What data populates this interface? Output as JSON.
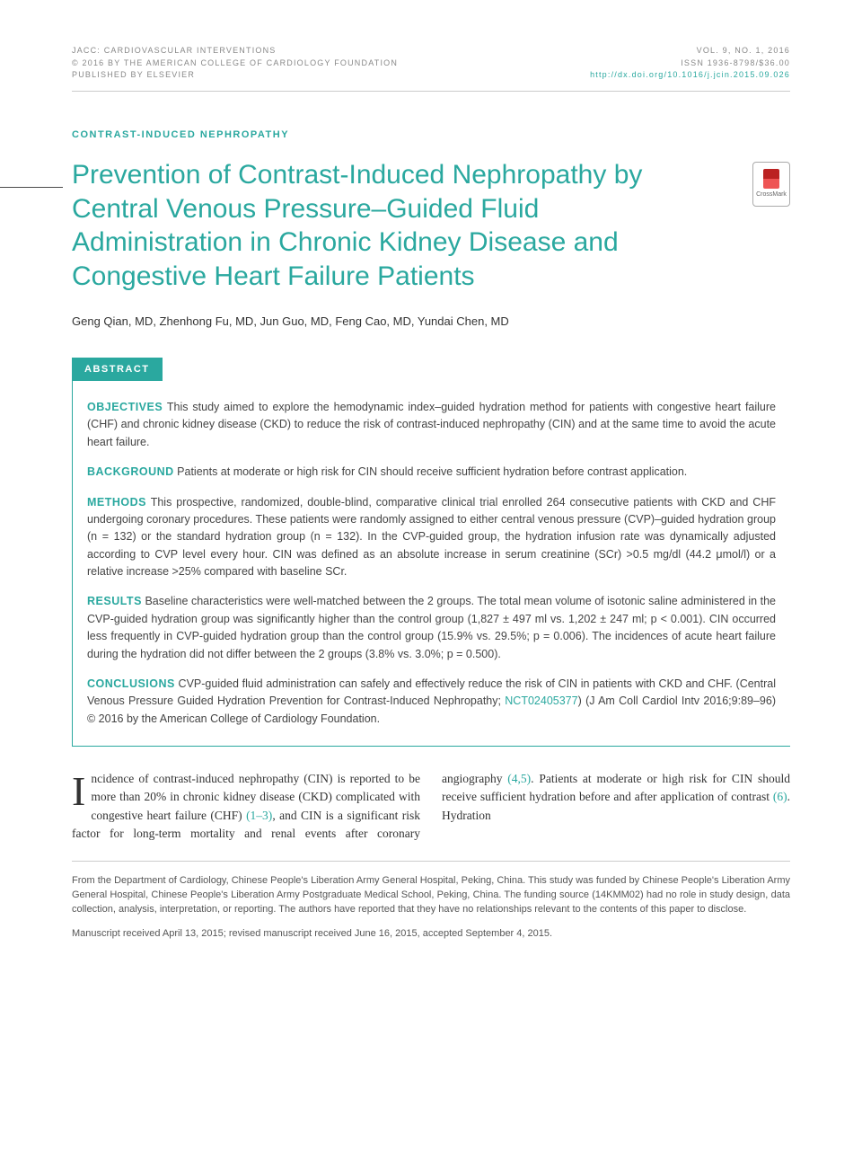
{
  "header": {
    "journal": "JACC: CARDIOVASCULAR INTERVENTIONS",
    "copyright": "© 2016 BY THE AMERICAN COLLEGE OF CARDIOLOGY FOUNDATION",
    "publisher": "PUBLISHED BY ELSEVIER",
    "issue": "VOL. 9, NO. 1, 2016",
    "issn": "ISSN 1936-8798/$36.00",
    "doi": "http://dx.doi.org/10.1016/j.jcin.2015.09.026"
  },
  "section_label": "CONTRAST-INDUCED NEPHROPATHY",
  "title": "Prevention of Contrast-Induced Nephropathy by Central Venous Pressure–Guided Fluid Administration in Chronic Kidney Disease and Congestive Heart Failure Patients",
  "crossmark_label": "CrossMark",
  "authors": "Geng Qian, MD, Zhenhong Fu, MD, Jun Guo, MD, Feng Cao, MD, Yundai Chen, MD",
  "abstract_label": "ABSTRACT",
  "abstract": {
    "objectives": {
      "key": "OBJECTIVES",
      "text": "This study aimed to explore the hemodynamic index–guided hydration method for patients with congestive heart failure (CHF) and chronic kidney disease (CKD) to reduce the risk of contrast-induced nephropathy (CIN) and at the same time to avoid the acute heart failure."
    },
    "background": {
      "key": "BACKGROUND",
      "text": "Patients at moderate or high risk for CIN should receive sufficient hydration before contrast application."
    },
    "methods": {
      "key": "METHODS",
      "text": "This prospective, randomized, double-blind, comparative clinical trial enrolled 264 consecutive patients with CKD and CHF undergoing coronary procedures. These patients were randomly assigned to either central venous pressure (CVP)–guided hydration group (n = 132) or the standard hydration group (n = 132). In the CVP-guided group, the hydration infusion rate was dynamically adjusted according to CVP level every hour. CIN was defined as an absolute increase in serum creatinine (SCr) >0.5 mg/dl (44.2 μmol/l) or a relative increase >25% compared with baseline SCr."
    },
    "results": {
      "key": "RESULTS",
      "text": "Baseline characteristics were well-matched between the 2 groups. The total mean volume of isotonic saline administered in the CVP-guided hydration group was significantly higher than the control group (1,827 ± 497 ml vs. 1,202 ± 247 ml; p < 0.001). CIN occurred less frequently in CVP-guided hydration group than the control group (15.9% vs. 29.5%; p = 0.006). The incidences of acute heart failure during the hydration did not differ between the 2 groups (3.8% vs. 3.0%; p = 0.500)."
    },
    "conclusions": {
      "key": "CONCLUSIONS",
      "text_pre": "CVP-guided fluid administration can safely and effectively reduce the risk of CIN in patients with CKD and CHF. (Central Venous Pressure Guided Hydration Prevention for Contrast-Induced Nephropathy; ",
      "nct": "NCT02405377",
      "text_post": ") (J Am Coll Cardiol Intv 2016;9:89–96) © 2016 by the American College of Cardiology Foundation."
    }
  },
  "body": {
    "dropcap": "I",
    "para1_a": "ncidence of contrast-induced nephropathy (CIN) is reported to be more than 20% in chronic kidney disease (CKD) complicated with congestive heart failure (CHF) ",
    "ref1": "(1–3)",
    "para1_b": ", and CIN is a significant risk factor for long-term mortality and renal events after coronary angiography ",
    "ref2": "(4,5)",
    "para1_c": ". Patients at moderate or high risk for CIN should receive sufficient hydration before and after application of contrast ",
    "ref3": "(6)",
    "para1_d": ". Hydration"
  },
  "footnote": "From the Department of Cardiology, Chinese People's Liberation Army General Hospital, Peking, China. This study was funded by Chinese People's Liberation Army General Hospital, Chinese People's Liberation Army Postgraduate Medical School, Peking, China. The funding source (14KMM02) had no role in study design, data collection, analysis, interpretation, or reporting. The authors have reported that they have no relationships relevant to the contents of this paper to disclose.",
  "manuscript": "Manuscript received April 13, 2015; revised manuscript received June 16, 2015, accepted September 4, 2015.",
  "colors": {
    "accent": "#2aa89f",
    "text": "#333333",
    "muted": "#888888"
  }
}
